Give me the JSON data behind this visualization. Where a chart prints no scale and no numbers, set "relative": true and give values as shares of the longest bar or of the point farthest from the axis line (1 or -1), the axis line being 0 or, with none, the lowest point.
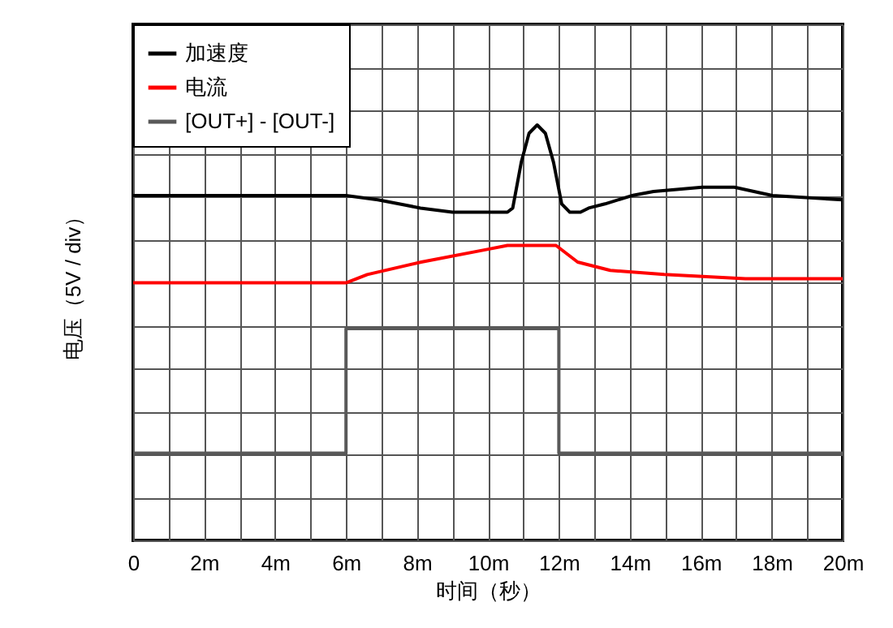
{
  "chart_data": {
    "type": "line",
    "relative": true,
    "xlabel": "时间（秒）",
    "ylabel": "电压（5V / div）",
    "xlim": [
      0,
      20
    ],
    "xticks": [
      0,
      {
        "value": 1,
        "label": null
      },
      {
        "value": 2,
        "label": "2m"
      },
      {
        "value": 3,
        "label": null
      },
      {
        "value": 4,
        "label": "4m"
      },
      {
        "value": 5,
        "label": null
      },
      {
        "value": 6,
        "label": "6m"
      },
      {
        "value": 7,
        "label": null
      },
      {
        "value": 8,
        "label": "8m"
      },
      {
        "value": 9,
        "label": null
      },
      {
        "value": 10,
        "label": "10m"
      },
      {
        "value": 11,
        "label": null
      },
      {
        "value": 12,
        "label": "12m"
      },
      {
        "value": 13,
        "label": null
      },
      {
        "value": 14,
        "label": "14m"
      },
      {
        "value": 15,
        "label": null
      },
      {
        "value": 16,
        "label": "16m"
      },
      {
        "value": 17,
        "label": null
      },
      {
        "value": 18,
        "label": "18m"
      },
      {
        "value": 19,
        "label": null
      },
      {
        "value": 20,
        "label": "20m"
      }
    ],
    "grid": true,
    "legend": "top left",
    "tick_labels": "x",
    "line_style": "solid",
    "marker": "none",
    "series": [
      {
        "name": "加速度",
        "color": "#000000",
        "x": [
          0,
          6.0,
          6.9,
          8.1,
          9.0,
          10.55,
          10.7,
          10.94,
          11.16,
          11.39,
          11.62,
          11.85,
          12.08,
          12.31,
          12.61,
          12.84,
          13.3,
          14.06,
          14.67,
          16.04,
          16.95,
          18.02,
          20
        ],
        "values": [
          0.83,
          0.83,
          0.82,
          0.8,
          0.79,
          0.79,
          0.8,
          0.91,
          0.98,
          1.0,
          0.98,
          0.91,
          0.81,
          0.79,
          0.79,
          0.8,
          0.81,
          0.83,
          0.84,
          0.85,
          0.85,
          0.83,
          0.82
        ]
      },
      {
        "name": "电流",
        "color": "#ff0000",
        "x": [
          0,
          6.0,
          6.6,
          8.12,
          9.95,
          10.55,
          11.92,
          12.53,
          13.45,
          14.97,
          17.26,
          20
        ],
        "values": [
          0.62,
          0.62,
          0.64,
          0.67,
          0.7,
          0.71,
          0.71,
          0.67,
          0.65,
          0.64,
          0.63,
          0.63
        ]
      },
      {
        "name": "[OUT+] - [OUT-]",
        "color": "#595959",
        "x": [
          0,
          6.0,
          6.0,
          12.0,
          12.0,
          20
        ],
        "values": [
          0.21,
          0.21,
          0.51,
          0.51,
          0.21,
          0.21
        ]
      }
    ]
  }
}
